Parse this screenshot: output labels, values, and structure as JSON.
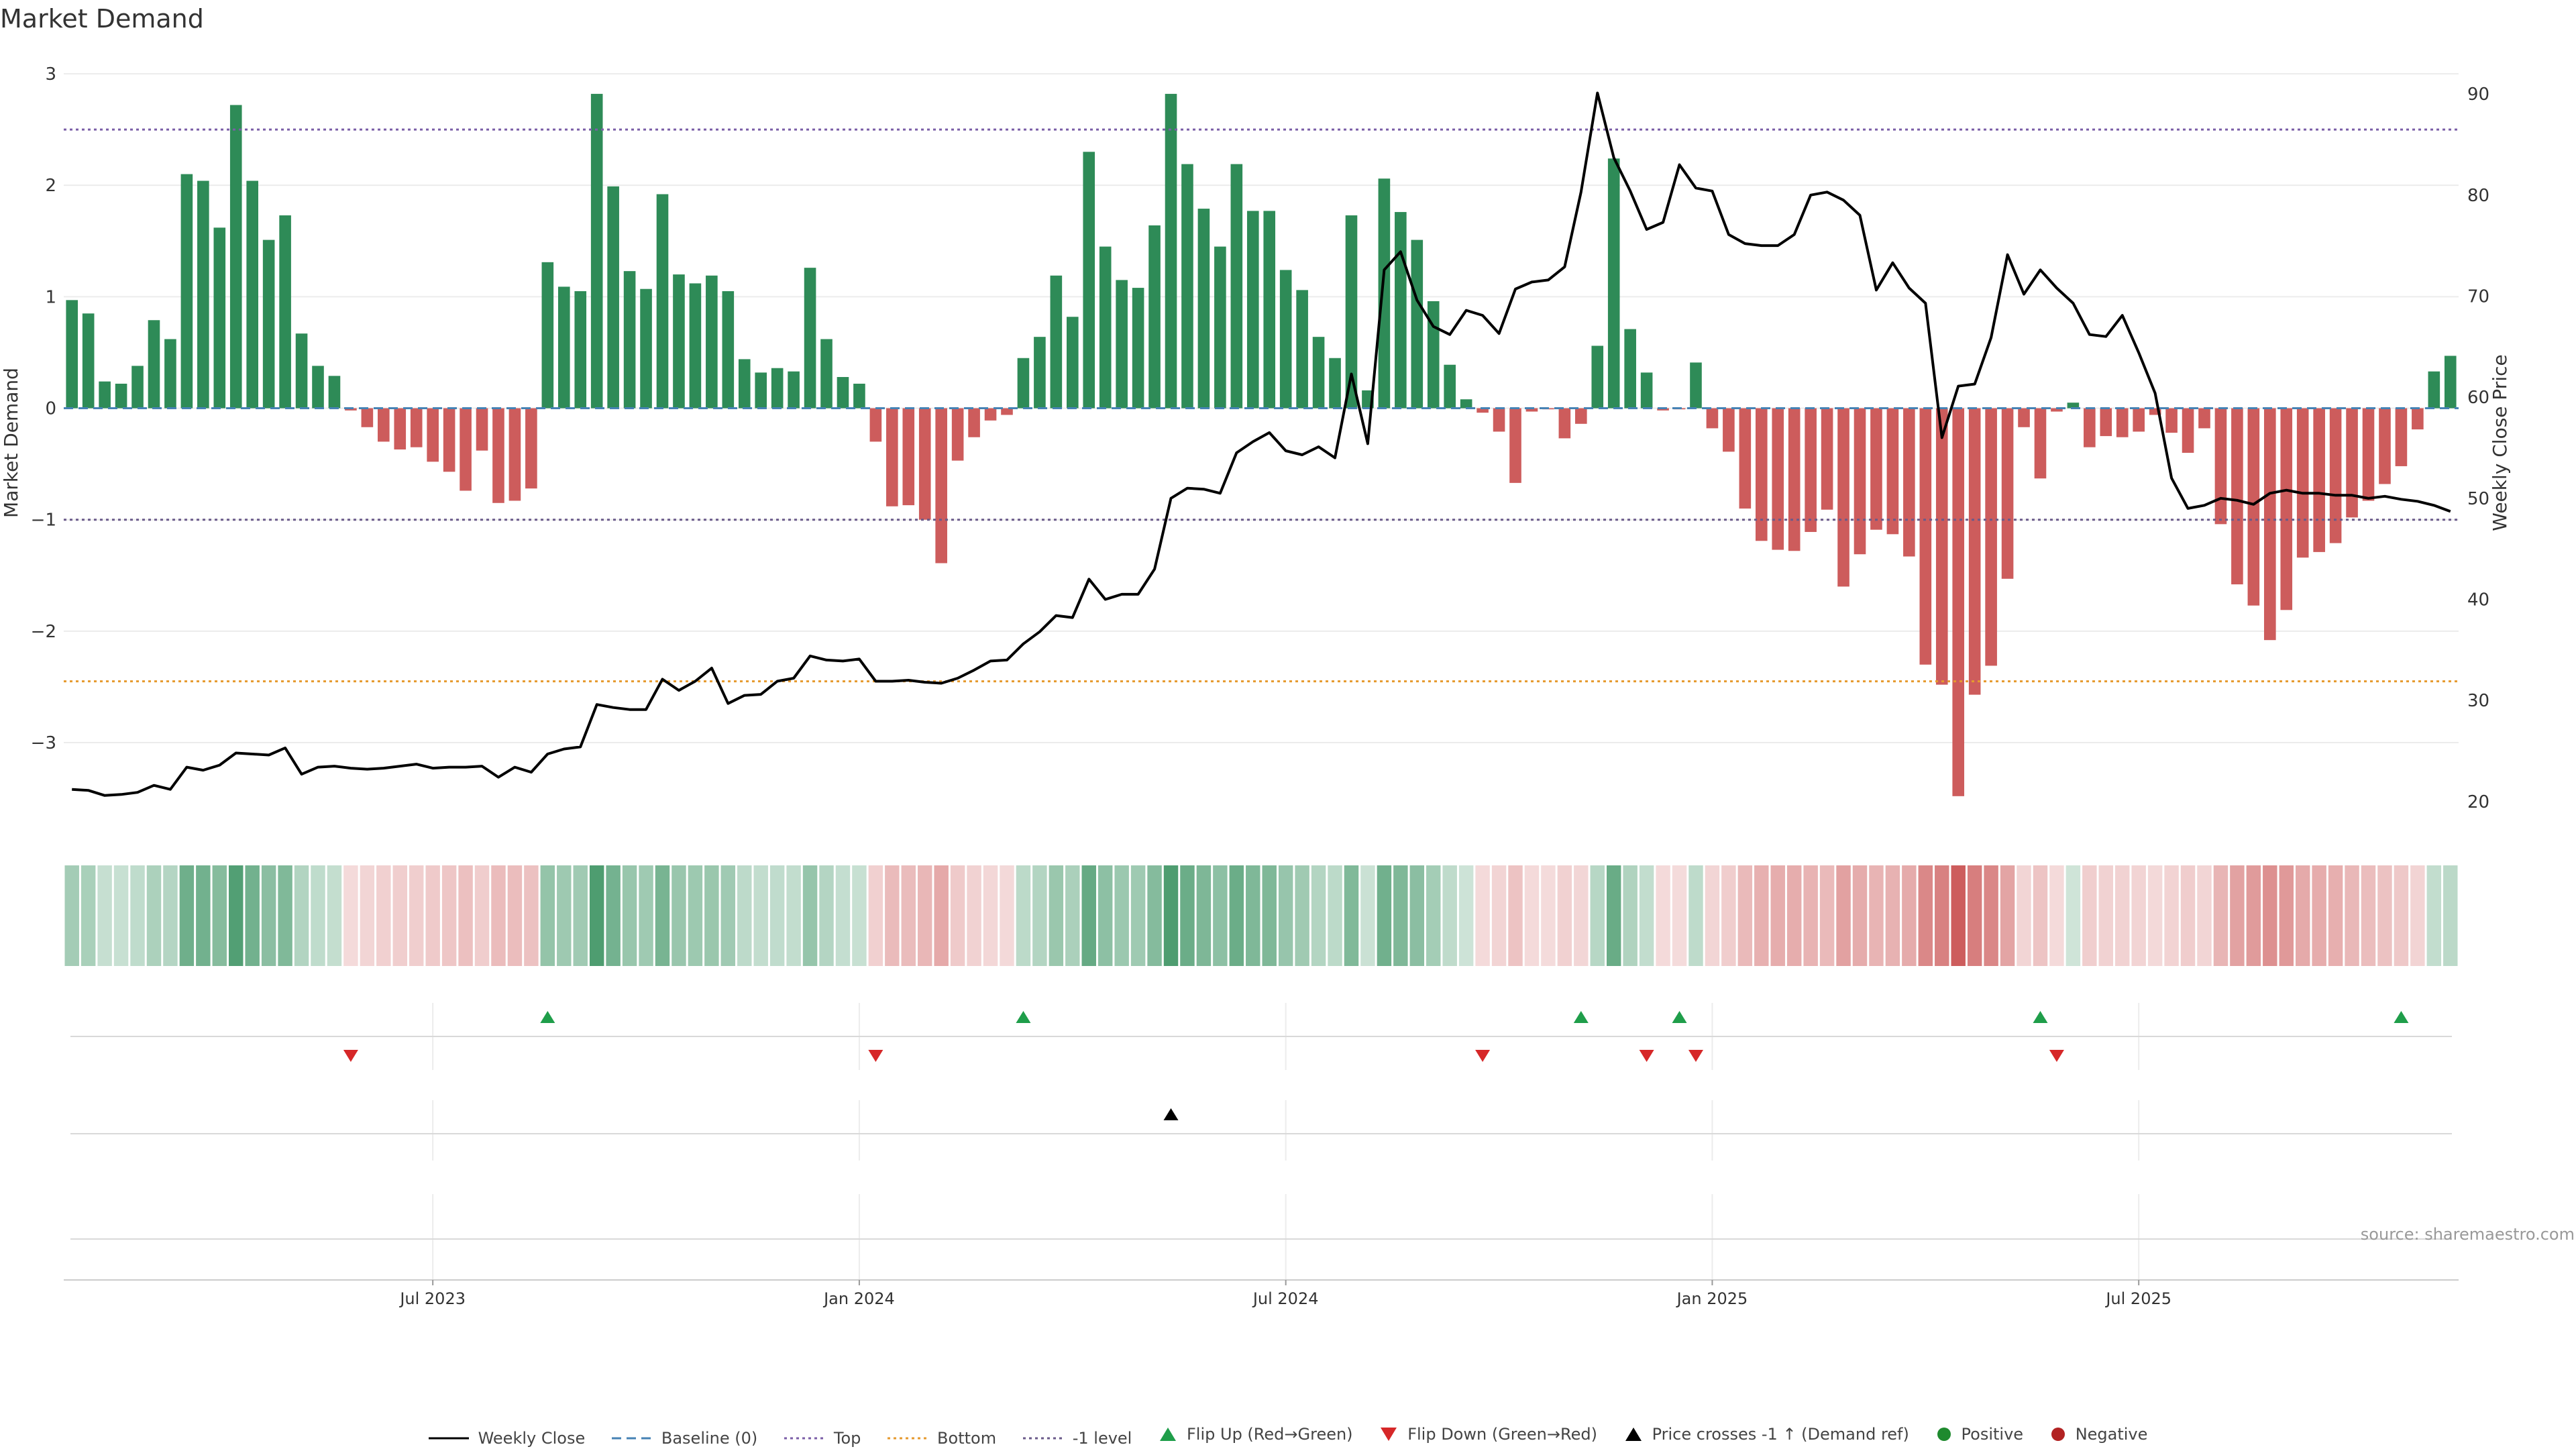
{
  "title": "Market Demand",
  "source": "source: sharemaestro.com",
  "colors": {
    "positive": "#2e8b57",
    "negative": "#cd5c5c",
    "line": "#000000",
    "baseline": "#4682b4",
    "top": "#7b5ea7",
    "bottom": "#e69a2e",
    "flip_up": "#1f9e4a",
    "flip_down": "#d62728"
  },
  "legend": {
    "weekly_close": "Weekly Close",
    "baseline": "Baseline (0)",
    "top": "Top",
    "bottom": "Bottom",
    "minus1": "-1 level",
    "flip_up": "Flip Up (Red→Green)",
    "flip_down": "Flip Down (Green→Red)",
    "price_cross": "Price crosses -1 ↑ (Demand ref)",
    "positive": "Positive",
    "negative": "Negative"
  },
  "chart_data": {
    "type": "bar",
    "ylabel_left": "Market Demand",
    "ylabel_right": "Weekly Close Price",
    "ylim_left": [
      -3.8,
      3.0
    ],
    "ylim_right": [
      17,
      92
    ],
    "yticks_left": [
      "3",
      "2",
      "1",
      "0",
      "−1",
      "−2",
      "−3"
    ],
    "yticks_right": [
      "90",
      "80",
      "70",
      "60",
      "50",
      "40",
      "30",
      "20"
    ],
    "reference_levels": {
      "top": 2.5,
      "bottom": -2.45,
      "minus1": -1.0,
      "baseline": 0
    },
    "x_ticks": [
      {
        "label": "Jul 2023",
        "index": 22
      },
      {
        "label": "Jan 2024",
        "index": 48
      },
      {
        "label": "Jul 2024",
        "index": 74
      },
      {
        "label": "Jan 2025",
        "index": 100
      },
      {
        "label": "Jul 2025",
        "index": 126
      }
    ],
    "demand": [
      0.97,
      0.85,
      0.24,
      0.22,
      0.38,
      0.79,
      0.62,
      2.1,
      2.04,
      1.62,
      2.72,
      2.04,
      1.51,
      1.73,
      0.67,
      0.38,
      0.29,
      -0.02,
      -0.17,
      -0.3,
      -0.37,
      -0.35,
      -0.48,
      -0.57,
      -0.74,
      -0.38,
      -0.85,
      -0.83,
      -0.72,
      1.31,
      1.09,
      1.05,
      2.82,
      1.99,
      1.23,
      1.07,
      1.92,
      1.2,
      1.12,
      1.19,
      1.05,
      0.44,
      0.32,
      0.36,
      0.33,
      1.26,
      0.62,
      0.28,
      0.22,
      -0.3,
      -0.88,
      -0.87,
      -1.0,
      -1.39,
      -0.47,
      -0.26,
      -0.11,
      -0.06,
      0.45,
      0.64,
      1.19,
      0.82,
      2.3,
      1.45,
      1.15,
      1.08,
      1.64,
      2.82,
      2.19,
      1.79,
      1.45,
      2.19,
      1.77,
      1.77,
      1.24,
      1.06,
      0.64,
      0.45,
      1.73,
      0.16,
      2.06,
      1.76,
      1.51,
      0.96,
      0.39,
      0.08,
      -0.04,
      -0.21,
      -0.67,
      -0.03,
      -0.01,
      -0.27,
      -0.14,
      0.56,
      2.24,
      0.71,
      0.32,
      -0.02,
      -0.01,
      0.41,
      -0.18,
      -0.39,
      -0.9,
      -1.19,
      -1.27,
      -1.28,
      -1.11,
      -0.91,
      -1.6,
      -1.31,
      -1.09,
      -1.13,
      -1.33,
      -2.3,
      -2.48,
      -3.48,
      -2.57,
      -2.31,
      -1.53,
      -0.17,
      -0.63,
      -0.03,
      0.05,
      -0.35,
      -0.25,
      -0.26,
      -0.21,
      -0.06,
      -0.22,
      -0.4,
      -0.18,
      -1.04,
      -1.58,
      -1.77,
      -2.08,
      -1.81,
      -1.34,
      -1.29,
      -1.21,
      -0.98,
      -0.83,
      -0.68,
      -0.52,
      -0.19,
      0.33,
      0.47
    ],
    "weekly_close": [
      21.2,
      21.1,
      20.6,
      20.7,
      20.9,
      21.6,
      21.2,
      23.4,
      23.1,
      23.6,
      24.8,
      24.7,
      24.6,
      25.3,
      22.7,
      23.4,
      23.5,
      23.3,
      23.2,
      23.3,
      23.5,
      23.7,
      23.3,
      23.4,
      23.4,
      23.5,
      22.4,
      23.4,
      22.9,
      24.7,
      25.2,
      25.4,
      29.6,
      29.3,
      29.1,
      29.1,
      32.1,
      31.0,
      31.9,
      33.2,
      29.7,
      30.5,
      30.6,
      31.9,
      32.2,
      34.4,
      34.0,
      33.9,
      34.1,
      31.9,
      31.9,
      32.0,
      31.8,
      31.7,
      32.2,
      33.0,
      33.9,
      34.0,
      35.6,
      36.8,
      38.4,
      38.2,
      42.0,
      40.0,
      40.5,
      40.5,
      43.0,
      50.0,
      51.0,
      50.9,
      50.5,
      54.5,
      55.6,
      56.5,
      54.7,
      54.3,
      55.1,
      54.0,
      62.3,
      55.4,
      72.6,
      74.4,
      69.6,
      67.0,
      66.2,
      68.6,
      68.1,
      66.3,
      70.7,
      71.4,
      71.6,
      72.9,
      80.3,
      90.1,
      83.7,
      80.4,
      76.6,
      77.3,
      83.0,
      80.7,
      80.4,
      76.1,
      75.2,
      75.0,
      75.0,
      76.1,
      80.0,
      80.3,
      79.5,
      78.0,
      70.6,
      73.3,
      70.8,
      69.3,
      56.0,
      61.1,
      61.3,
      65.9,
      74.1,
      70.2,
      72.6,
      70.8,
      69.3,
      66.2,
      66.0,
      68.1,
      64.4,
      60.4,
      52.0,
      49.0,
      49.3,
      50.0,
      49.8,
      49.4,
      50.5,
      50.8,
      50.5,
      50.5,
      50.3,
      50.3,
      50.0,
      50.2,
      49.9,
      49.7,
      49.3,
      48.7
    ],
    "flip_up": [
      29,
      58,
      92,
      98,
      120,
      142
    ],
    "flip_down": [
      17,
      49,
      86,
      96,
      99,
      121
    ],
    "price_cross_up": [
      67
    ]
  }
}
